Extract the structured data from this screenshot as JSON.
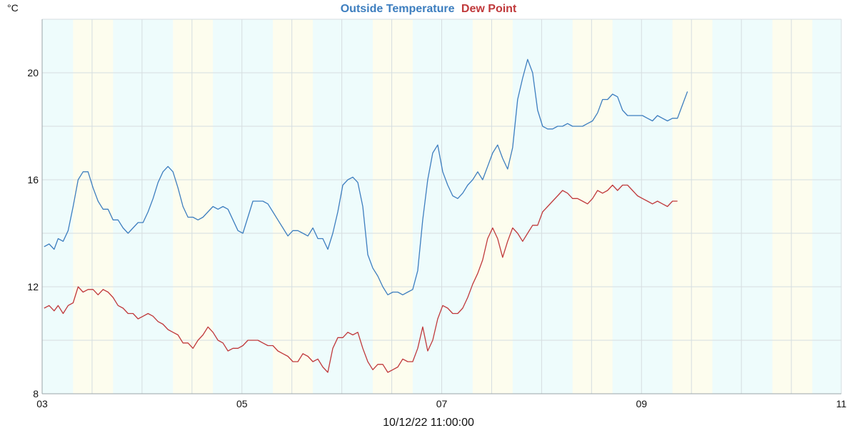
{
  "chart_data": {
    "type": "line",
    "title_parts": [
      {
        "text": "Outside Temperature",
        "color": "#3d7ebf"
      },
      {
        "text": "Dew Point",
        "color": "#c0393b"
      }
    ],
    "y_unit": "°C",
    "timestamp": "10/12/22 11:00:00",
    "xlim": [
      3,
      11
    ],
    "ylim": [
      8,
      22
    ],
    "x_ticks": [
      {
        "value": 3,
        "label": "03"
      },
      {
        "value": 5,
        "label": "05"
      },
      {
        "value": 7,
        "label": "07"
      },
      {
        "value": 9,
        "label": "09"
      },
      {
        "value": 11,
        "label": "11"
      }
    ],
    "y_ticks": [
      {
        "value": 8,
        "label": "8"
      },
      {
        "value": 12,
        "label": "12"
      },
      {
        "value": 16,
        "label": "16"
      },
      {
        "value": 20,
        "label": "20"
      }
    ],
    "grid": true,
    "band_colors": {
      "night": "#eefcfc",
      "day": "#fdfdee"
    },
    "day_bands": [
      [
        3.31,
        3.71
      ],
      [
        4.31,
        4.71
      ],
      [
        5.31,
        5.71
      ],
      [
        6.31,
        6.71
      ],
      [
        7.31,
        7.71
      ],
      [
        8.31,
        8.71
      ],
      [
        9.31,
        9.71
      ],
      [
        10.31,
        10.71
      ]
    ],
    "series": [
      {
        "name": "Outside Temperature",
        "color": "#3d7ebf",
        "points": [
          [
            3.02,
            13.5
          ],
          [
            3.07,
            13.6
          ],
          [
            3.12,
            13.4
          ],
          [
            3.16,
            13.8
          ],
          [
            3.21,
            13.7
          ],
          [
            3.26,
            14.1
          ],
          [
            3.31,
            15.0
          ],
          [
            3.36,
            16.0
          ],
          [
            3.41,
            16.3
          ],
          [
            3.46,
            16.3
          ],
          [
            3.51,
            15.7
          ],
          [
            3.56,
            15.2
          ],
          [
            3.61,
            14.9
          ],
          [
            3.66,
            14.9
          ],
          [
            3.71,
            14.5
          ],
          [
            3.76,
            14.5
          ],
          [
            3.81,
            14.2
          ],
          [
            3.86,
            14.0
          ],
          [
            3.91,
            14.2
          ],
          [
            3.96,
            14.4
          ],
          [
            4.01,
            14.4
          ],
          [
            4.06,
            14.8
          ],
          [
            4.11,
            15.3
          ],
          [
            4.16,
            15.9
          ],
          [
            4.21,
            16.3
          ],
          [
            4.26,
            16.5
          ],
          [
            4.31,
            16.3
          ],
          [
            4.36,
            15.7
          ],
          [
            4.41,
            15.0
          ],
          [
            4.46,
            14.6
          ],
          [
            4.51,
            14.6
          ],
          [
            4.56,
            14.5
          ],
          [
            4.61,
            14.6
          ],
          [
            4.66,
            14.8
          ],
          [
            4.71,
            15.0
          ],
          [
            4.76,
            14.9
          ],
          [
            4.81,
            15.0
          ],
          [
            4.86,
            14.9
          ],
          [
            4.91,
            14.5
          ],
          [
            4.96,
            14.1
          ],
          [
            5.01,
            14.0
          ],
          [
            5.06,
            14.6
          ],
          [
            5.11,
            15.2
          ],
          [
            5.16,
            15.2
          ],
          [
            5.21,
            15.2
          ],
          [
            5.26,
            15.1
          ],
          [
            5.31,
            14.8
          ],
          [
            5.36,
            14.5
          ],
          [
            5.41,
            14.2
          ],
          [
            5.46,
            13.9
          ],
          [
            5.51,
            14.1
          ],
          [
            5.56,
            14.1
          ],
          [
            5.61,
            14.0
          ],
          [
            5.66,
            13.9
          ],
          [
            5.71,
            14.2
          ],
          [
            5.76,
            13.8
          ],
          [
            5.81,
            13.8
          ],
          [
            5.86,
            13.4
          ],
          [
            5.91,
            14.0
          ],
          [
            5.96,
            14.8
          ],
          [
            6.01,
            15.8
          ],
          [
            6.06,
            16.0
          ],
          [
            6.11,
            16.1
          ],
          [
            6.16,
            15.9
          ],
          [
            6.21,
            15.0
          ],
          [
            6.26,
            13.2
          ],
          [
            6.31,
            12.7
          ],
          [
            6.36,
            12.4
          ],
          [
            6.41,
            12.0
          ],
          [
            6.46,
            11.7
          ],
          [
            6.51,
            11.8
          ],
          [
            6.56,
            11.8
          ],
          [
            6.61,
            11.7
          ],
          [
            6.66,
            11.8
          ],
          [
            6.71,
            11.9
          ],
          [
            6.76,
            12.6
          ],
          [
            6.81,
            14.5
          ],
          [
            6.86,
            16.0
          ],
          [
            6.91,
            17.0
          ],
          [
            6.96,
            17.3
          ],
          [
            7.01,
            16.3
          ],
          [
            7.06,
            15.8
          ],
          [
            7.11,
            15.4
          ],
          [
            7.16,
            15.3
          ],
          [
            7.21,
            15.5
          ],
          [
            7.26,
            15.8
          ],
          [
            7.31,
            16.0
          ],
          [
            7.36,
            16.3
          ],
          [
            7.41,
            16.0
          ],
          [
            7.46,
            16.5
          ],
          [
            7.51,
            17.0
          ],
          [
            7.56,
            17.3
          ],
          [
            7.61,
            16.8
          ],
          [
            7.66,
            16.4
          ],
          [
            7.71,
            17.2
          ],
          [
            7.76,
            19.0
          ],
          [
            7.81,
            19.8
          ],
          [
            7.86,
            20.5
          ],
          [
            7.91,
            20.0
          ],
          [
            7.96,
            18.6
          ],
          [
            8.01,
            18.0
          ],
          [
            8.06,
            17.9
          ],
          [
            8.11,
            17.9
          ],
          [
            8.16,
            18.0
          ],
          [
            8.21,
            18.0
          ],
          [
            8.26,
            18.1
          ],
          [
            8.31,
            18.0
          ],
          [
            8.36,
            18.0
          ],
          [
            8.41,
            18.0
          ],
          [
            8.46,
            18.1
          ],
          [
            8.51,
            18.2
          ],
          [
            8.56,
            18.5
          ],
          [
            8.61,
            19.0
          ],
          [
            8.66,
            19.0
          ],
          [
            8.71,
            19.2
          ],
          [
            8.76,
            19.1
          ],
          [
            8.81,
            18.6
          ],
          [
            8.86,
            18.4
          ],
          [
            8.91,
            18.4
          ],
          [
            8.96,
            18.4
          ],
          [
            9.01,
            18.4
          ],
          [
            9.06,
            18.3
          ],
          [
            9.11,
            18.2
          ],
          [
            9.16,
            18.4
          ],
          [
            9.21,
            18.3
          ],
          [
            9.26,
            18.2
          ],
          [
            9.31,
            18.3
          ],
          [
            9.36,
            18.3
          ],
          [
            9.41,
            18.8
          ],
          [
            9.46,
            19.3
          ]
        ]
      },
      {
        "name": "Dew Point",
        "color": "#c0393b",
        "points": [
          [
            3.02,
            11.2
          ],
          [
            3.07,
            11.3
          ],
          [
            3.12,
            11.1
          ],
          [
            3.16,
            11.3
          ],
          [
            3.21,
            11.0
          ],
          [
            3.26,
            11.3
          ],
          [
            3.31,
            11.4
          ],
          [
            3.36,
            12.0
          ],
          [
            3.41,
            11.8
          ],
          [
            3.46,
            11.9
          ],
          [
            3.51,
            11.9
          ],
          [
            3.56,
            11.7
          ],
          [
            3.61,
            11.9
          ],
          [
            3.66,
            11.8
          ],
          [
            3.71,
            11.6
          ],
          [
            3.76,
            11.3
          ],
          [
            3.81,
            11.2
          ],
          [
            3.86,
            11.0
          ],
          [
            3.91,
            11.0
          ],
          [
            3.96,
            10.8
          ],
          [
            4.01,
            10.9
          ],
          [
            4.06,
            11.0
          ],
          [
            4.11,
            10.9
          ],
          [
            4.16,
            10.7
          ],
          [
            4.21,
            10.6
          ],
          [
            4.26,
            10.4
          ],
          [
            4.31,
            10.3
          ],
          [
            4.36,
            10.2
          ],
          [
            4.41,
            9.9
          ],
          [
            4.46,
            9.9
          ],
          [
            4.51,
            9.7
          ],
          [
            4.56,
            10.0
          ],
          [
            4.61,
            10.2
          ],
          [
            4.66,
            10.5
          ],
          [
            4.71,
            10.3
          ],
          [
            4.76,
            10.0
          ],
          [
            4.81,
            9.9
          ],
          [
            4.86,
            9.6
          ],
          [
            4.91,
            9.7
          ],
          [
            4.96,
            9.7
          ],
          [
            5.01,
            9.8
          ],
          [
            5.06,
            10.0
          ],
          [
            5.11,
            10.0
          ],
          [
            5.16,
            10.0
          ],
          [
            5.21,
            9.9
          ],
          [
            5.26,
            9.8
          ],
          [
            5.31,
            9.8
          ],
          [
            5.36,
            9.6
          ],
          [
            5.41,
            9.5
          ],
          [
            5.46,
            9.4
          ],
          [
            5.51,
            9.2
          ],
          [
            5.56,
            9.2
          ],
          [
            5.61,
            9.5
          ],
          [
            5.66,
            9.4
          ],
          [
            5.71,
            9.2
          ],
          [
            5.76,
            9.3
          ],
          [
            5.81,
            9.0
          ],
          [
            5.86,
            8.8
          ],
          [
            5.91,
            9.7
          ],
          [
            5.96,
            10.1
          ],
          [
            6.01,
            10.1
          ],
          [
            6.06,
            10.3
          ],
          [
            6.11,
            10.2
          ],
          [
            6.16,
            10.3
          ],
          [
            6.21,
            9.7
          ],
          [
            6.26,
            9.2
          ],
          [
            6.31,
            8.9
          ],
          [
            6.36,
            9.1
          ],
          [
            6.41,
            9.1
          ],
          [
            6.46,
            8.8
          ],
          [
            6.51,
            8.9
          ],
          [
            6.56,
            9.0
          ],
          [
            6.61,
            9.3
          ],
          [
            6.66,
            9.2
          ],
          [
            6.71,
            9.2
          ],
          [
            6.76,
            9.7
          ],
          [
            6.81,
            10.5
          ],
          [
            6.86,
            9.6
          ],
          [
            6.91,
            10.0
          ],
          [
            6.96,
            10.8
          ],
          [
            7.01,
            11.3
          ],
          [
            7.06,
            11.2
          ],
          [
            7.11,
            11.0
          ],
          [
            7.16,
            11.0
          ],
          [
            7.21,
            11.2
          ],
          [
            7.26,
            11.6
          ],
          [
            7.31,
            12.1
          ],
          [
            7.36,
            12.5
          ],
          [
            7.41,
            13.0
          ],
          [
            7.46,
            13.8
          ],
          [
            7.51,
            14.2
          ],
          [
            7.56,
            13.8
          ],
          [
            7.61,
            13.1
          ],
          [
            7.66,
            13.7
          ],
          [
            7.71,
            14.2
          ],
          [
            7.76,
            14.0
          ],
          [
            7.81,
            13.7
          ],
          [
            7.86,
            14.0
          ],
          [
            7.91,
            14.3
          ],
          [
            7.96,
            14.3
          ],
          [
            8.01,
            14.8
          ],
          [
            8.06,
            15.0
          ],
          [
            8.11,
            15.2
          ],
          [
            8.16,
            15.4
          ],
          [
            8.21,
            15.6
          ],
          [
            8.26,
            15.5
          ],
          [
            8.31,
            15.3
          ],
          [
            8.36,
            15.3
          ],
          [
            8.41,
            15.2
          ],
          [
            8.46,
            15.1
          ],
          [
            8.51,
            15.3
          ],
          [
            8.56,
            15.6
          ],
          [
            8.61,
            15.5
          ],
          [
            8.66,
            15.6
          ],
          [
            8.71,
            15.8
          ],
          [
            8.76,
            15.6
          ],
          [
            8.81,
            15.8
          ],
          [
            8.86,
            15.8
          ],
          [
            8.91,
            15.6
          ],
          [
            8.96,
            15.4
          ],
          [
            9.01,
            15.3
          ],
          [
            9.06,
            15.2
          ],
          [
            9.11,
            15.1
          ],
          [
            9.16,
            15.2
          ],
          [
            9.21,
            15.1
          ],
          [
            9.26,
            15.0
          ],
          [
            9.31,
            15.2
          ],
          [
            9.36,
            15.2
          ]
        ]
      }
    ]
  }
}
